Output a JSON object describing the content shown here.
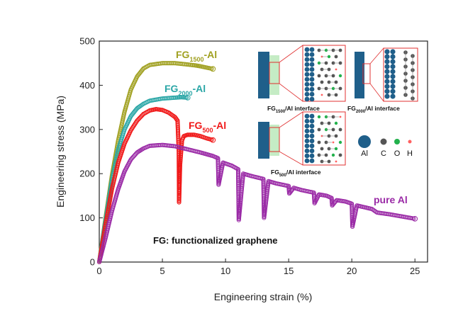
{
  "chart_data": {
    "type": "scatter",
    "title": "",
    "xlabel": "Engineering strain (%)",
    "ylabel": "Engineering stress (MPa)",
    "xlim": [
      0,
      26
    ],
    "ylim": [
      0,
      500
    ],
    "xticks": [
      0,
      5,
      10,
      15,
      20,
      25
    ],
    "yticks": [
      0,
      100,
      200,
      300,
      400,
      500
    ],
    "annotation": "FG: functionalized graphene",
    "series": [
      {
        "name": "FG1500-Al",
        "label_main": "FG",
        "label_sub": "1500",
        "label_tail": "-Al",
        "color": "#a0a020",
        "x": [
          0,
          0.5,
          1.0,
          1.5,
          2.0,
          2.5,
          3.0,
          3.5,
          4.0,
          5.0,
          6.0,
          7.0,
          7.6,
          8.0,
          8.5,
          9.0
        ],
        "y": [
          0,
          100,
          195,
          275,
          340,
          390,
          420,
          438,
          446,
          450,
          450,
          447,
          445,
          443,
          440,
          437
        ]
      },
      {
        "name": "FG2000-Al",
        "label_main": "FG",
        "label_sub": "2000",
        "label_tail": "-Al",
        "color": "#2aa6a6",
        "x": [
          0,
          0.5,
          1.0,
          1.5,
          2.0,
          2.5,
          3.0,
          3.5,
          4.0,
          5.0,
          6.0,
          6.5,
          7.0
        ],
        "y": [
          0,
          95,
          185,
          255,
          300,
          330,
          348,
          358,
          365,
          370,
          372,
          373,
          372
        ]
      },
      {
        "name": "FG500-Al",
        "label_main": "FG",
        "label_sub": "500",
        "label_tail": "-Al",
        "color": "#f01818",
        "x": [
          0,
          0.5,
          1.0,
          1.5,
          2.0,
          2.5,
          3.0,
          3.5,
          4.0,
          4.5,
          5.0,
          5.5,
          6.0,
          6.2,
          6.3,
          6.32,
          6.4,
          6.55,
          6.7,
          7.0,
          7.5,
          8.0,
          8.5,
          9.0
        ],
        "y": [
          0,
          85,
          165,
          225,
          268,
          298,
          320,
          335,
          343,
          346,
          344,
          338,
          328,
          320,
          250,
          135,
          220,
          275,
          285,
          288,
          288,
          285,
          280,
          276
        ]
      },
      {
        "name": "pure Al",
        "label_main": "pure Al",
        "label_sub": "",
        "label_tail": "",
        "color": "#9a2aa6",
        "x": [
          0,
          0.5,
          1.0,
          1.5,
          2.0,
          2.5,
          3.0,
          3.5,
          4.0,
          5.0,
          6.0,
          7.0,
          8.0,
          9.0,
          9.4,
          9.45,
          9.8,
          10.5,
          11.0,
          11.05,
          11.4,
          12.0,
          13.0,
          13.05,
          13.4,
          14.0,
          15.0,
          15.05,
          15.4,
          16.0,
          17.0,
          17.05,
          17.4,
          18.0,
          18.4,
          18.45,
          18.8,
          19.5,
          20.0,
          20.05,
          20.4,
          21.0,
          21.6,
          22.0,
          23.0,
          24.0,
          25.0
        ],
        "y": [
          0,
          55,
          115,
          165,
          205,
          232,
          248,
          257,
          263,
          265,
          262,
          255,
          248,
          240,
          235,
          175,
          225,
          218,
          210,
          95,
          200,
          195,
          188,
          100,
          183,
          178,
          172,
          155,
          168,
          163,
          157,
          133,
          153,
          150,
          145,
          128,
          140,
          137,
          132,
          80,
          128,
          124,
          120,
          112,
          108,
          103,
          98
        ]
      }
    ]
  },
  "insets": {
    "fg1500_label_main": "FG",
    "fg1500_label_sub": "1500",
    "fg1500_label_tail": "/Al interface",
    "fg2000_label_main": "FG",
    "fg2000_label_sub": "2000",
    "fg2000_label_tail": "/Al interface",
    "fg500_label_main": "FG",
    "fg500_label_sub": "500",
    "fg500_label_tail": "/Al interface",
    "legend": [
      "Al",
      "C",
      "O",
      "H"
    ],
    "colors": {
      "al": "#1f5f8a",
      "c": "#555555",
      "o": "#22b14c",
      "h": "#ff6060",
      "frame": "#e03030"
    }
  }
}
